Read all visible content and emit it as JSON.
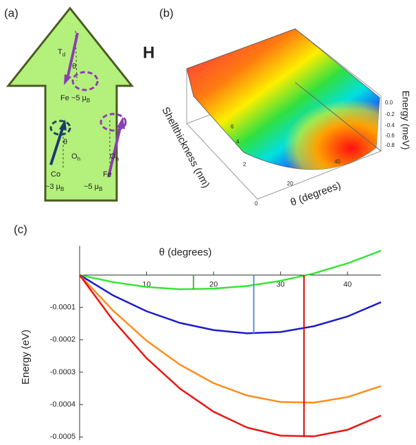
{
  "panel_a": {
    "label": "(a)",
    "field": "H",
    "td": {
      "main": "T",
      "sub": "d"
    },
    "theta_top": "θ",
    "fe_top": {
      "main": "Fe ~5 μ",
      "sub": "B"
    },
    "theta_bottom": "θ",
    "oh_left": {
      "main": "O",
      "sub": "h"
    },
    "oh_right": {
      "main": "O",
      "sub": "h"
    },
    "co": "Co",
    "co_moment": {
      "main": "~3 μ",
      "sub": "B"
    },
    "fe_bottom": "Fe",
    "fe_moment": {
      "main": "~5 μ",
      "sub": "B"
    }
  },
  "panel_b": {
    "label": "(b)",
    "x_label": "θ (degrees)",
    "y_label": "Shellthickness (nm)",
    "z_label": "Energy (meV)",
    "z_ticks": [
      "0.0",
      "-0.2",
      "-0.4",
      "-0.6",
      "-0.8"
    ],
    "x_ticks": [
      "20",
      "40"
    ],
    "y_ticks": [
      "0",
      "2",
      "4",
      "6"
    ]
  },
  "chart_data": {
    "type": "line",
    "panel_label": "(c)",
    "x_label": "θ (degrees)",
    "y_label": "Energy (eV)",
    "x": [
      0,
      5,
      10,
      15,
      20,
      25,
      30,
      35,
      40,
      45
    ],
    "series": [
      {
        "color": "#33e633",
        "values": [
          0,
          -2.2e-05,
          -3.7e-05,
          -4.4e-05,
          -4.2e-05,
          -3.4e-05,
          -1.8e-05,
          5e-06,
          3.6e-05,
          7.5e-05
        ]
      },
      {
        "color": "#1a1acc",
        "values": [
          0,
          -6.3e-05,
          -0.000112,
          -0.000148,
          -0.00017,
          -0.00018,
          -0.000176,
          -0.000158,
          -0.000128,
          -8.4e-05
        ]
      },
      {
        "color": "#ff8c1a",
        "values": [
          0,
          -0.00011,
          -0.000203,
          -0.000277,
          -0.000334,
          -0.000372,
          -0.000392,
          -0.000394,
          -0.000377,
          -0.000343
        ]
      },
      {
        "color": "#ee1111",
        "values": [
          0,
          -0.00014,
          -0.000257,
          -0.000351,
          -0.000422,
          -0.000471,
          -0.000496,
          -0.000498,
          -0.000478,
          -0.000434
        ]
      }
    ],
    "markers": [
      {
        "x": 17,
        "y": -4.4e-05,
        "color": "#4caf50"
      },
      {
        "x": 26,
        "y": -0.00018,
        "color": "#5b8fd6"
      },
      {
        "x": 33.5,
        "y": -0.0005,
        "color": "#e00000"
      }
    ],
    "xlim": [
      0,
      45
    ],
    "ylim": [
      -0.00051,
      9e-05
    ],
    "xticks": [
      10,
      20,
      30,
      40
    ],
    "yticks": [
      -0.0001,
      -0.0002,
      -0.0003,
      -0.0004,
      -0.0005
    ]
  }
}
